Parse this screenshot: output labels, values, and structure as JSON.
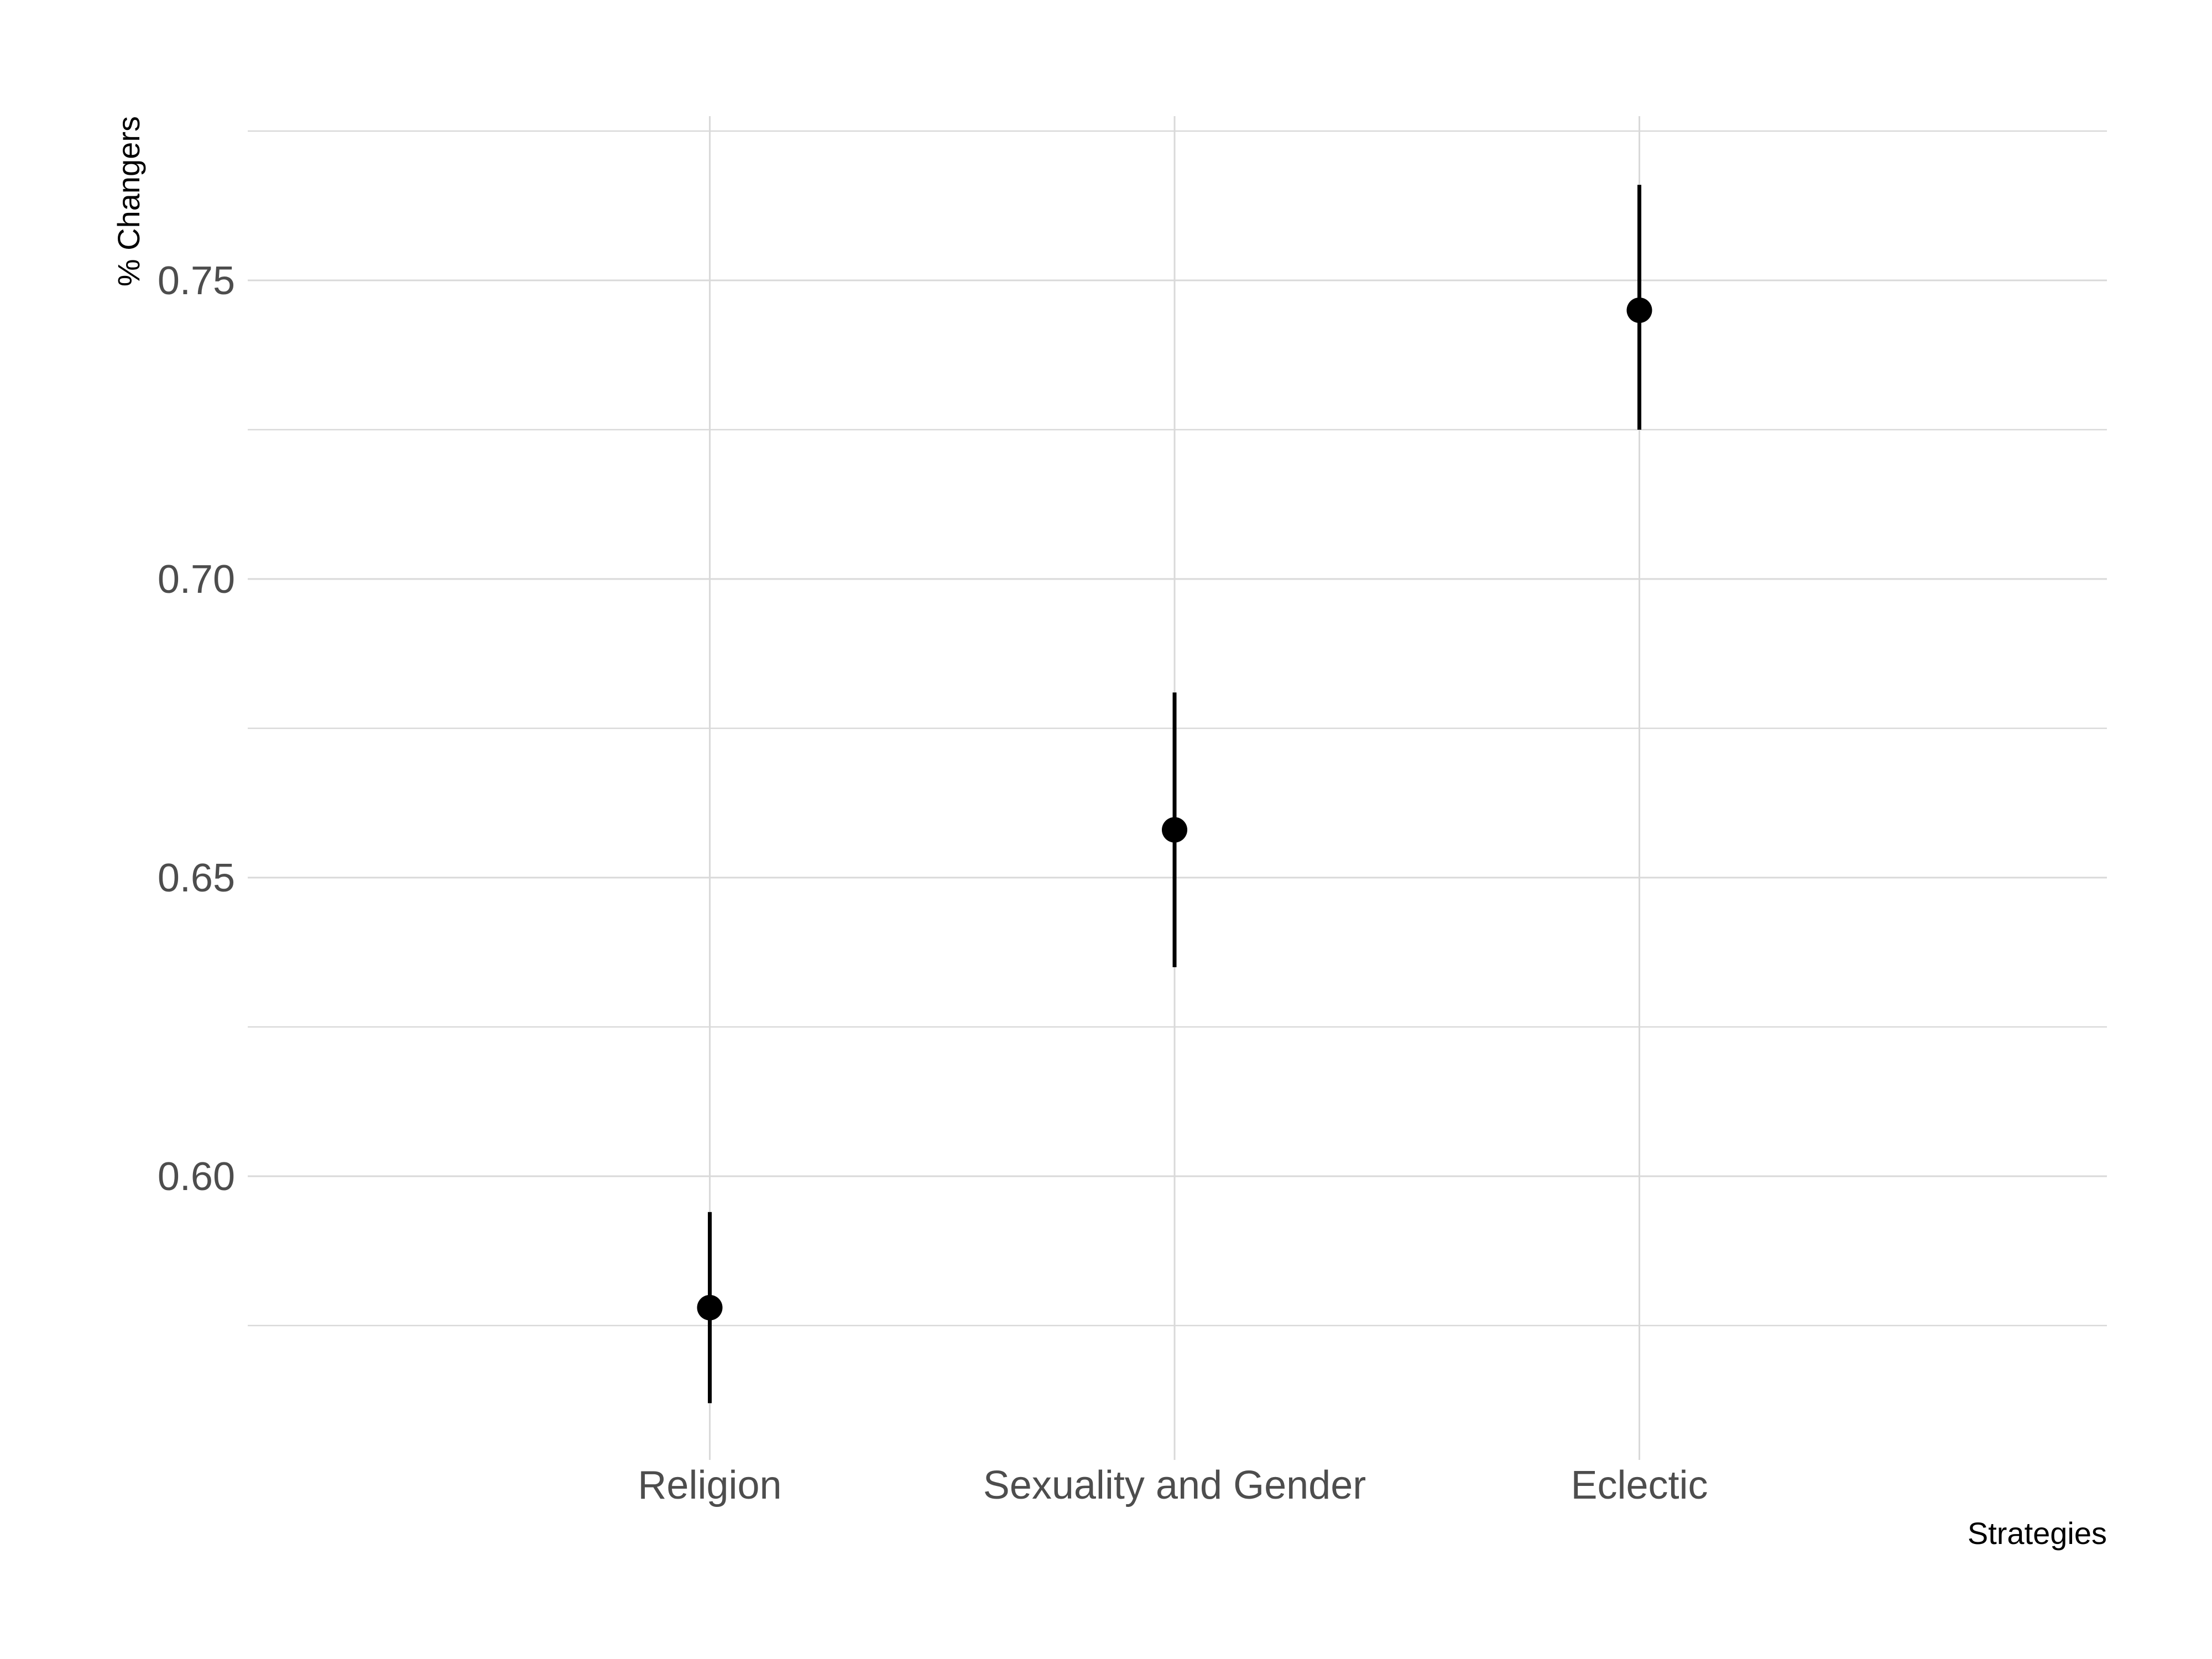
{
  "chart_data": {
    "type": "pointrange",
    "categories": [
      "Religion",
      "Sexuality and Gender",
      "Eclectic"
    ],
    "series": [
      {
        "values": [
          0.578,
          0.658,
          0.745
        ],
        "lower": [
          0.562,
          0.635,
          0.725
        ],
        "upper": [
          0.594,
          0.681,
          0.766
        ]
      }
    ],
    "xlabel": "Strategies",
    "ylabel": "% Changers",
    "ylim": [
      0.5525,
      0.7775
    ],
    "yticks": [
      0.6,
      0.65,
      0.7,
      0.75
    ],
    "ytick_labels": [
      "0.60",
      "0.65",
      "0.70",
      "0.75"
    ],
    "grid": true,
    "legend": "none",
    "colors": {
      "points": "#000000",
      "grid": "#d9d9d9",
      "tick_text": "#4d4d4d",
      "background": "#ffffff"
    }
  }
}
